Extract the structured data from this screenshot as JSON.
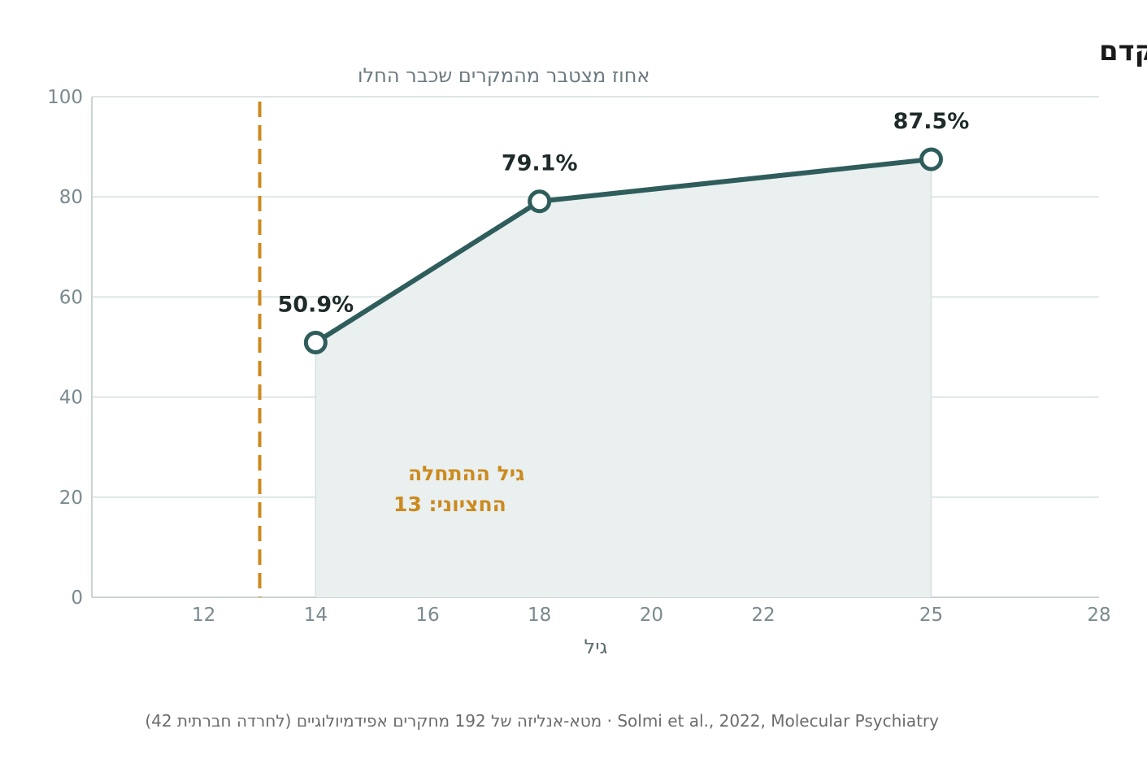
{
  "chart_data": {
    "type": "line",
    "title": "חרדה חברתית מתחילה מוקדם",
    "ylabel": "אחוז מצטבר מהמקרים שכבר החלו",
    "xlabel": "גיל",
    "x": [
      14,
      18,
      25
    ],
    "series": [
      {
        "values": [
          50.9,
          79.1,
          87.5
        ],
        "data_labels": [
          "50.9%",
          "79.1%",
          "87.5%"
        ]
      }
    ],
    "xlim": [
      10,
      28
    ],
    "ylim": [
      0,
      100
    ],
    "x_ticks": [
      12,
      14,
      16,
      18,
      20,
      22,
      25,
      28
    ],
    "y_ticks": [
      0,
      20,
      40,
      60,
      80,
      100
    ],
    "grid": "horizontal",
    "area_fill": true,
    "reference_line": {
      "x": 13,
      "label_line1": "גיל ההתחלה",
      "label_line2": "החציוני: 13"
    },
    "source": "(42 לחרדה חברתית) מטא-אנליזה של 192 מחקרים אפידמיולוגיים · Solmi et al., 2022, Molecular Psychiatry"
  },
  "colors": {
    "line": "#2f5d5c",
    "area": "#e9f0ef",
    "reference": "#cc8a1e",
    "grid": "#dde5e4",
    "axis": "#c9d3d2"
  }
}
